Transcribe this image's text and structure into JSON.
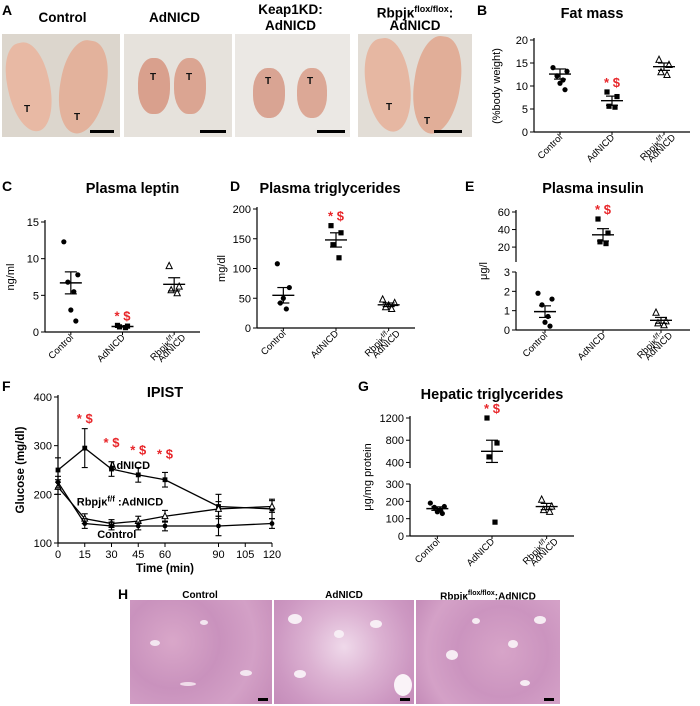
{
  "panel_letters": {
    "A": "A",
    "B": "B",
    "C": "C",
    "D": "D",
    "E": "E",
    "F": "F",
    "G": "G",
    "H": "H"
  },
  "photos": {
    "titles": [
      "Control",
      "AdNICD",
      "Keap1KD:",
      "AdNICD",
      "Rbpjκ",
      "flox/flox",
      ":",
      "AdNICD"
    ],
    "tumor_label": "T"
  },
  "histology": {
    "titles": [
      "Control",
      "AdNICD",
      "Rbpjκ",
      "flox/flox",
      ":AdNICD"
    ]
  },
  "colors": {
    "significance": "#e8262a",
    "point": "#000000"
  },
  "chart_data": [
    {
      "id": "B",
      "type": "scatter",
      "title": "Fat mass",
      "ylabel": "(%body weight)",
      "ylim": [
        0,
        20
      ],
      "yticks": [
        0,
        5,
        10,
        15,
        20
      ],
      "categories": [
        "Control",
        "AdNICD",
        "Rbpjκ",
        "f/f",
        ":",
        "AdNICD"
      ],
      "groups": [
        {
          "values": [
            14,
            13.2,
            12.2,
            11.3,
            10.6,
            9.2
          ],
          "mean": 12.6,
          "sem": 1.1,
          "marker": "circle"
        },
        {
          "values": [
            8.7,
            7.7,
            5.6,
            5.4
          ],
          "mean": 6.8,
          "sem": 1.0,
          "marker": "square",
          "annotation": "* $"
        },
        {
          "values": [
            15.7,
            14.6,
            13.0,
            12.4
          ],
          "mean": 14.2,
          "sem": 0.8,
          "marker": "triangle"
        }
      ]
    },
    {
      "id": "C",
      "type": "scatter",
      "title": "Plasma leptin",
      "ylabel": "ng/ml",
      "ylim": [
        0,
        15
      ],
      "yticks": [
        0,
        5,
        10,
        15
      ],
      "categories": [
        "Control",
        "AdNICD",
        "Rbpjκ",
        "f/f",
        ":",
        "AdNICD"
      ],
      "groups": [
        {
          "values": [
            12.3,
            7.8,
            6.8,
            5.5,
            3.0,
            1.5
          ],
          "mean": 6.7,
          "sem": 1.5,
          "marker": "circle"
        },
        {
          "values": [
            0.9,
            0.8,
            0.7,
            0.6
          ],
          "mean": 0.75,
          "sem": 0.08,
          "marker": "square",
          "annotation": "* $"
        },
        {
          "values": [
            9.0,
            6.2,
            5.7,
            5.3
          ],
          "mean": 6.5,
          "sem": 0.9,
          "marker": "triangle"
        }
      ]
    },
    {
      "id": "D",
      "type": "scatter",
      "title": "Plasma triglycerides",
      "ylabel": "mg/dl",
      "ylim": [
        0,
        200
      ],
      "yticks": [
        0,
        50,
        100,
        150,
        200
      ],
      "categories": [
        "Control",
        "AdNICD",
        "Rbpjκ",
        "f/f",
        ":",
        "AdNICD"
      ],
      "groups": [
        {
          "values": [
            108,
            68,
            50,
            42,
            32
          ],
          "mean": 55,
          "sem": 13,
          "marker": "circle"
        },
        {
          "values": [
            172,
            160,
            140,
            118
          ],
          "mean": 148,
          "sem": 12,
          "marker": "square",
          "annotation": "* $"
        },
        {
          "values": [
            48,
            42,
            38,
            35,
            32
          ],
          "mean": 39,
          "sem": 3,
          "marker": "triangle"
        }
      ]
    },
    {
      "id": "E",
      "type": "scatter",
      "title": "Plasma insulin",
      "ylabel": "μg/l",
      "broken_axis": true,
      "yticks_lower": [
        0,
        1,
        2,
        3
      ],
      "yticks_upper": [
        20,
        40,
        60
      ],
      "categories": [
        "Control",
        "AdNICD",
        "Rbpjκ",
        "f/f",
        ":",
        "AdNICD"
      ],
      "groups": [
        {
          "values": [
            1.9,
            1.6,
            1.3,
            0.7,
            0.4,
            0.2
          ],
          "mean": 0.95,
          "sem": 0.3,
          "marker": "circle"
        },
        {
          "values": [
            52,
            36,
            26,
            24
          ],
          "mean": 34,
          "sem": 7,
          "marker": "square",
          "annotation": "* $"
        },
        {
          "values": [
            0.9,
            0.45,
            0.35,
            0.25
          ],
          "mean": 0.5,
          "sem": 0.15,
          "marker": "triangle"
        }
      ]
    },
    {
      "id": "F",
      "type": "line",
      "title": "IPIST",
      "xlabel": "Time (min)",
      "ylabel": "Glucose (mg/dl)",
      "xlim": [
        0,
        120
      ],
      "ylim": [
        100,
        400
      ],
      "xticks": [
        0,
        15,
        30,
        45,
        60,
        90,
        105,
        120
      ],
      "yticks": [
        100,
        200,
        300,
        400
      ],
      "x": [
        0,
        15,
        30,
        45,
        60,
        90,
        120
      ],
      "series": [
        {
          "name": "AdNICD",
          "values": [
            250,
            295,
            252,
            240,
            230,
            175,
            170
          ],
          "err": [
            25,
            40,
            15,
            15,
            15,
            25,
            20
          ],
          "marker": "square"
        },
        {
          "name": "Rbpjκ",
          "name_sup": "f/f",
          "name_tail": ":AdNICD",
          "values": [
            215,
            150,
            140,
            145,
            155,
            170,
            175
          ],
          "err": [
            15,
            10,
            8,
            10,
            12,
            15,
            12
          ],
          "marker": "triangle"
        },
        {
          "name": "Control",
          "values": [
            225,
            140,
            135,
            135,
            135,
            135,
            140
          ],
          "err": [
            12,
            10,
            8,
            8,
            10,
            20,
            10
          ],
          "marker": "circle"
        }
      ],
      "annotations": [
        {
          "x": 15,
          "text": "* $",
          "y": 355
        },
        {
          "x": 30,
          "text": "* $",
          "y": 305
        },
        {
          "x": 45,
          "text": "* $",
          "y": 290
        },
        {
          "x": 60,
          "text": "* $",
          "y": 282
        }
      ]
    },
    {
      "id": "G",
      "type": "scatter",
      "title": "Hepatic triglycerides",
      "ylabel": "μg/mg protein",
      "broken_axis": true,
      "yticks_lower": [
        0,
        100,
        200,
        300
      ],
      "yticks_upper": [
        400,
        800,
        1200
      ],
      "categories": [
        "Control",
        "AdNICD",
        "Rbpjκ",
        "f/f",
        ":",
        "AdNICD"
      ],
      "groups": [
        {
          "values": [
            190,
            170,
            165,
            150,
            140,
            130
          ],
          "mean": 158,
          "sem": 10,
          "marker": "circle"
        },
        {
          "values": [
            1200,
            750,
            500,
            80
          ],
          "mean": 600,
          "sem": 200,
          "marker": "square",
          "annotation": "* $"
        },
        {
          "values": [
            210,
            170,
            150,
            140
          ],
          "mean": 170,
          "sem": 18,
          "marker": "triangle"
        }
      ]
    }
  ]
}
